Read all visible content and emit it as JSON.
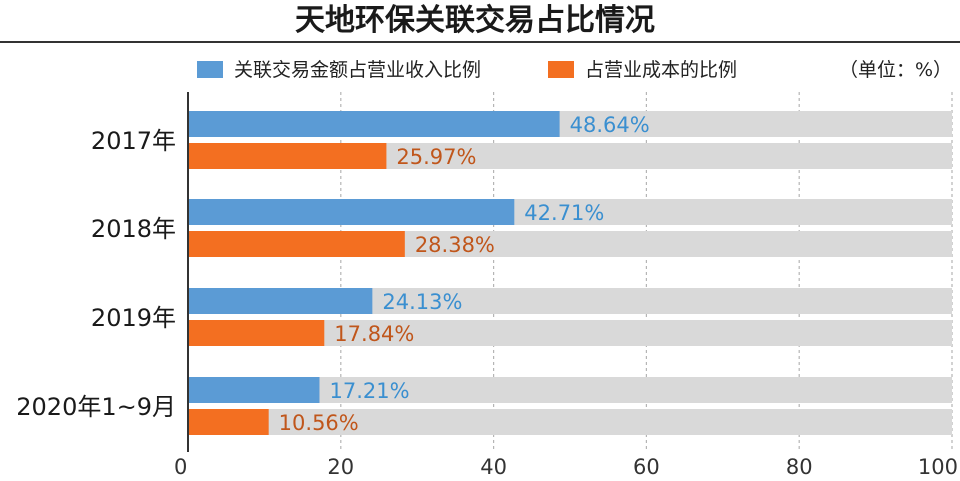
{
  "chart_data": {
    "type": "bar",
    "orientation": "horizontal",
    "title": "天地环保关联交易占比情况",
    "unit_note": "（单位：%）",
    "categories": [
      "2017年",
      "2018年",
      "2019年",
      "2020年1~9月"
    ],
    "series": [
      {
        "name": "关联交易金额占营业收入比例",
        "values": [
          48.64,
          42.71,
          24.13,
          17.21
        ],
        "value_labels": [
          "48.64%",
          "42.71%",
          "24.13%",
          "17.21%"
        ],
        "color": "#5b9bd5",
        "label_color": "#3a8fd0"
      },
      {
        "name": "占营业成本的比例",
        "values": [
          25.97,
          28.38,
          17.84,
          10.56
        ],
        "value_labels": [
          "25.97%",
          "28.38%",
          "17.84%",
          "10.56%"
        ],
        "color": "#f36f21",
        "label_color": "#c0561b"
      }
    ],
    "xlim": [
      0,
      100
    ],
    "x_ticks": [
      "0",
      "20",
      "40",
      "60",
      "80",
      "100"
    ],
    "grid": "dashed vertical",
    "legend_position": "top",
    "track_color": "#d9d9d9"
  }
}
